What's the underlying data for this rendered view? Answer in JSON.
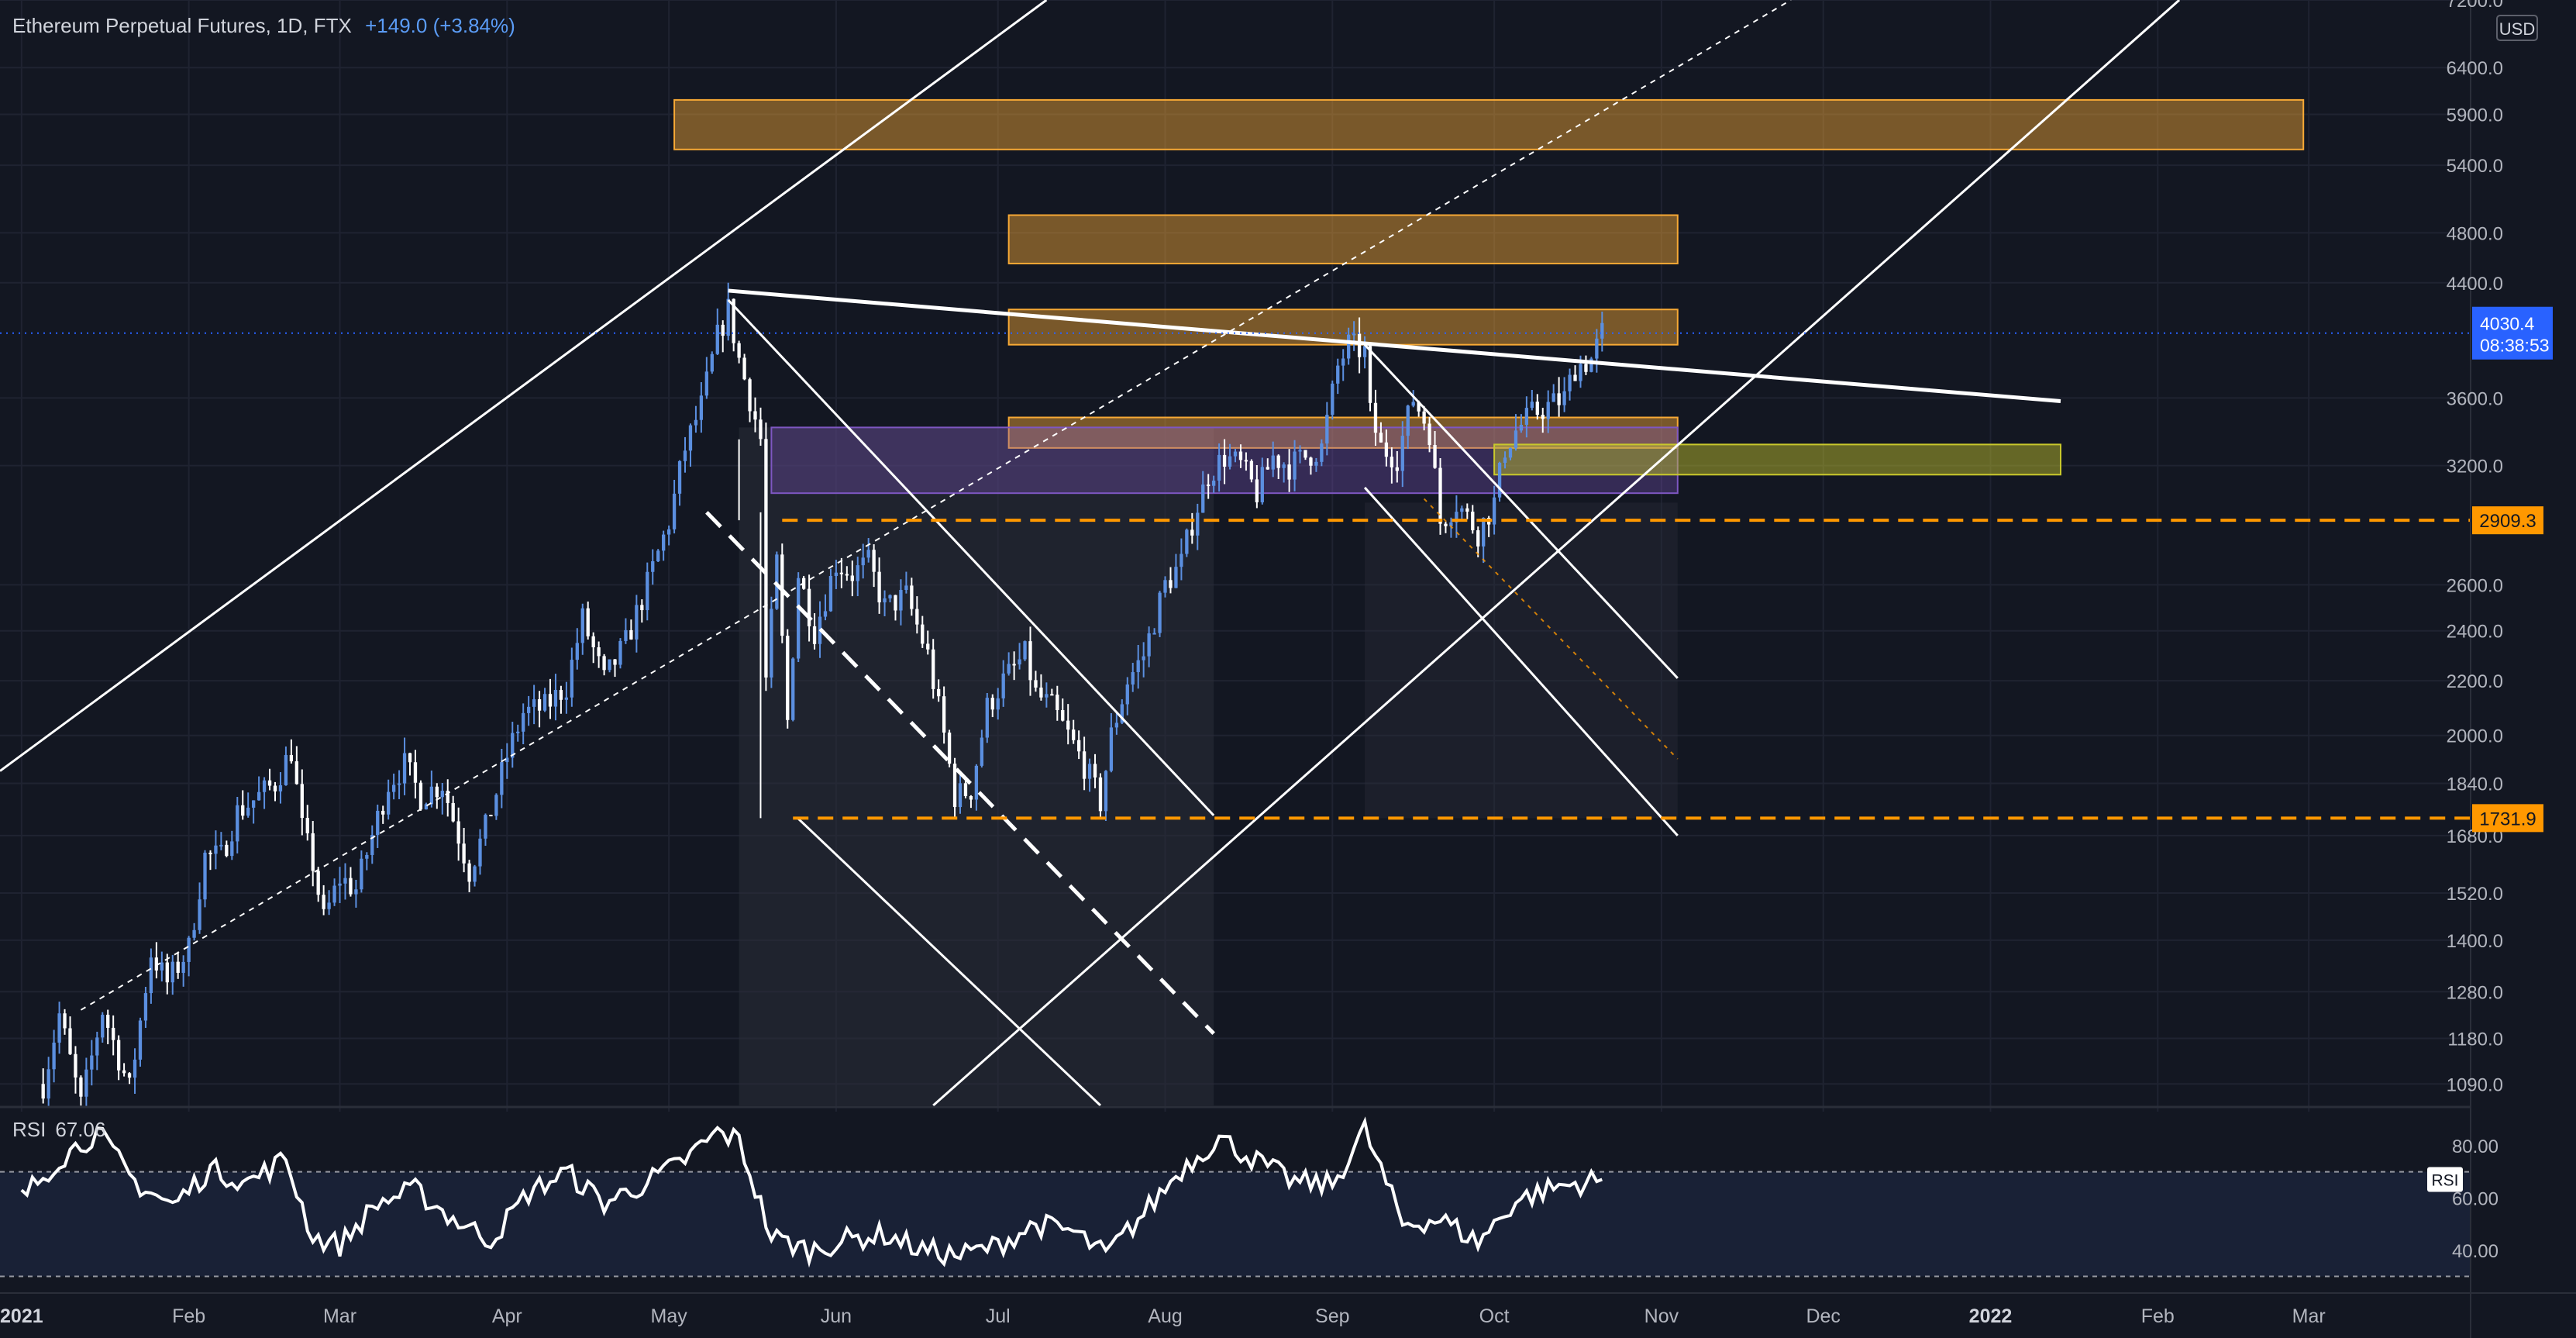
{
  "header": {
    "symbol_text": "Ethereum Perpetual Futures, 1D, FTX",
    "change_text": "+149.0 (+3.84%)"
  },
  "price_axis": {
    "currency": "USD",
    "last_price": "4030.4",
    "countdown": "08:38:53",
    "level_tags": [
      "2909.3",
      "1731.9"
    ]
  },
  "rsi_panel": {
    "label": "RSI",
    "value": "67.06",
    "axis_tag": "RSI"
  },
  "colors": {
    "background": "#131722",
    "up_candle": "#5b8fe0",
    "down_candle": "#ffffff",
    "zone_orange": "#f7a935",
    "zone_purple": "#7e57c2",
    "zone_yellow": "#c9c92c",
    "level_orange": "#ff9800",
    "last_price_tag": "#2962ff"
  },
  "chart_data": [
    {
      "type": "candlestick",
      "title": "Ethereum Perpetual Futures, 1D, FTX",
      "y_scale": "log",
      "ylim": [
        1050,
        7200
      ],
      "x_range": [
        "2020-12-28",
        "2022-03-31"
      ],
      "y_ticks": [
        7200,
        6400,
        5900,
        5400,
        4800,
        4400,
        4030.4,
        3600,
        3200,
        2909.3,
        2600,
        2400,
        2200,
        2000,
        1840,
        1731.9,
        1680,
        1520,
        1400,
        1280,
        1180,
        1090
      ],
      "x_tick_labels": [
        {
          "date": "2021-01-01",
          "label": "2021"
        },
        {
          "date": "2021-02-01",
          "label": "Feb"
        },
        {
          "date": "2021-03-01",
          "label": "Mar"
        },
        {
          "date": "2021-04-01",
          "label": "Apr"
        },
        {
          "date": "2021-05-01",
          "label": "May"
        },
        {
          "date": "2021-06-01",
          "label": "Jun"
        },
        {
          "date": "2021-07-01",
          "label": "Jul"
        },
        {
          "date": "2021-08-01",
          "label": "Aug"
        },
        {
          "date": "2021-09-01",
          "label": "Sep"
        },
        {
          "date": "2021-10-01",
          "label": "Oct"
        },
        {
          "date": "2021-11-01",
          "label": "Nov"
        },
        {
          "date": "2021-12-01",
          "label": "Dec"
        },
        {
          "date": "2022-01-01",
          "label": "2022"
        },
        {
          "date": "2022-02-01",
          "label": "Feb"
        },
        {
          "date": "2022-03-01",
          "label": "Mar"
        }
      ],
      "grid": true,
      "price_path": [
        [
          "2021-01-05",
          1090
        ],
        [
          "2021-01-08",
          1230
        ],
        [
          "2021-01-12",
          1050
        ],
        [
          "2021-01-16",
          1240
        ],
        [
          "2021-01-21",
          1080
        ],
        [
          "2021-01-25",
          1370
        ],
        [
          "2021-01-28",
          1300
        ],
        [
          "2021-02-01",
          1380
        ],
        [
          "2021-02-04",
          1620
        ],
        [
          "2021-02-07",
          1620
        ],
        [
          "2021-02-10",
          1750
        ],
        [
          "2021-02-14",
          1800
        ],
        [
          "2021-02-17",
          1840
        ],
        [
          "2021-02-20",
          1950
        ],
        [
          "2021-02-22",
          1700
        ],
        [
          "2021-02-24",
          1600
        ],
        [
          "2021-02-26",
          1450
        ],
        [
          "2021-03-01",
          1560
        ],
        [
          "2021-03-04",
          1530
        ],
        [
          "2021-03-07",
          1680
        ],
        [
          "2021-03-10",
          1840
        ],
        [
          "2021-03-13",
          1900
        ],
        [
          "2021-03-16",
          1800
        ],
        [
          "2021-03-20",
          1840
        ],
        [
          "2021-03-25",
          1580
        ],
        [
          "2021-03-28",
          1700
        ],
        [
          "2021-04-01",
          1930
        ],
        [
          "2021-04-04",
          2080
        ],
        [
          "2021-04-08",
          2100
        ],
        [
          "2021-04-12",
          2180
        ],
        [
          "2021-04-15",
          2450
        ],
        [
          "2021-04-19",
          2200
        ],
        [
          "2021-04-23",
          2350
        ],
        [
          "2021-04-27",
          2600
        ],
        [
          "2021-05-01",
          2900
        ],
        [
          "2021-05-04",
          3300
        ],
        [
          "2021-05-07",
          3550
        ],
        [
          "2021-05-10",
          4000
        ],
        [
          "2021-05-12",
          4200
        ],
        [
          "2021-05-14",
          3850
        ],
        [
          "2021-05-16",
          3600
        ],
        [
          "2021-05-18",
          3350
        ],
        [
          "2021-05-19",
          2200
        ],
        [
          "2021-05-21",
          2700
        ],
        [
          "2021-05-23",
          2050
        ],
        [
          "2021-05-25",
          2650
        ],
        [
          "2021-05-28",
          2400
        ],
        [
          "2021-06-01",
          2700
        ],
        [
          "2021-06-04",
          2650
        ],
        [
          "2021-06-07",
          2700
        ],
        [
          "2021-06-10",
          2500
        ],
        [
          "2021-06-14",
          2550
        ],
        [
          "2021-06-18",
          2300
        ],
        [
          "2021-06-21",
          2000
        ],
        [
          "2021-06-23",
          1800
        ],
        [
          "2021-06-26",
          1820
        ],
        [
          "2021-06-29",
          2100
        ],
        [
          "2021-07-02",
          2200
        ],
        [
          "2021-07-06",
          2300
        ],
        [
          "2021-07-08",
          2150
        ],
        [
          "2021-07-11",
          2100
        ],
        [
          "2021-07-14",
          2000
        ],
        [
          "2021-07-17",
          1900
        ],
        [
          "2021-07-20",
          1780
        ],
        [
          "2021-07-22",
          2000
        ],
        [
          "2021-07-25",
          2200
        ],
        [
          "2021-07-28",
          2300
        ],
        [
          "2021-08-01",
          2600
        ],
        [
          "2021-08-04",
          2700
        ],
        [
          "2021-08-06",
          2900
        ],
        [
          "2021-08-09",
          3150
        ],
        [
          "2021-08-12",
          3250
        ],
        [
          "2021-08-15",
          3200
        ],
        [
          "2021-08-18",
          3050
        ],
        [
          "2021-08-21",
          3250
        ],
        [
          "2021-08-24",
          3200
        ],
        [
          "2021-08-27",
          3250
        ],
        [
          "2021-08-30",
          3300
        ],
        [
          "2021-09-02",
          3800
        ],
        [
          "2021-09-04",
          3950
        ],
        [
          "2021-09-07",
          3900
        ],
        [
          "2021-09-08",
          3500
        ],
        [
          "2021-09-10",
          3300
        ],
        [
          "2021-09-13",
          3250
        ],
        [
          "2021-09-16",
          3600
        ],
        [
          "2021-09-19",
          3400
        ],
        [
          "2021-09-21",
          2900
        ],
        [
          "2021-09-24",
          3000
        ],
        [
          "2021-09-28",
          2850
        ],
        [
          "2021-10-01",
          3000
        ],
        [
          "2021-10-03",
          3300
        ],
        [
          "2021-10-05",
          3400
        ],
        [
          "2021-10-08",
          3500
        ],
        [
          "2021-10-11",
          3550
        ],
        [
          "2021-10-14",
          3600
        ],
        [
          "2021-10-16",
          3800
        ],
        [
          "2021-10-19",
          3850
        ],
        [
          "2021-10-21",
          4030
        ]
      ],
      "drawings": {
        "horizontal_levels": [
          2909.3,
          1731.9
        ],
        "zones": [
          {
            "color": "orange",
            "from": "2021-05-02",
            "to": "2022-02-28",
            "low": 5550,
            "high": 6050
          },
          {
            "color": "orange",
            "from": "2021-07-03",
            "to": "2021-11-04",
            "low": 4550,
            "high": 4950
          },
          {
            "color": "orange",
            "from": "2021-07-03",
            "to": "2021-11-04",
            "low": 3950,
            "high": 4200
          },
          {
            "color": "orange",
            "from": "2021-07-03",
            "to": "2021-11-04",
            "low": 3300,
            "high": 3480
          },
          {
            "color": "purple",
            "from": "2021-05-20",
            "to": "2021-11-04",
            "low": 3050,
            "high": 3420
          },
          {
            "color": "yellow",
            "from": "2021-10-01",
            "to": "2022-01-14",
            "low": 3150,
            "high": 3320
          }
        ]
      }
    },
    {
      "type": "line",
      "title": "RSI",
      "ylim": [
        26,
        93
      ],
      "y_ticks": [
        80,
        60,
        40
      ],
      "reference_lines": [
        70,
        30
      ],
      "last_value": 67.06,
      "series": [
        {
          "x": [
            "2021-01-01",
            "2021-01-08",
            "2021-01-15",
            "2021-01-22",
            "2021-01-29",
            "2021-02-05",
            "2021-02-12",
            "2021-02-19",
            "2021-02-24",
            "2021-03-01",
            "2021-03-08",
            "2021-03-15",
            "2021-03-22",
            "2021-03-29",
            "2021-04-05",
            "2021-04-12",
            "2021-04-19",
            "2021-04-26",
            "2021-05-03",
            "2021-05-10",
            "2021-05-14",
            "2021-05-20",
            "2021-05-27",
            "2021-06-03",
            "2021-06-10",
            "2021-06-17",
            "2021-06-24",
            "2021-07-01",
            "2021-07-08",
            "2021-07-15",
            "2021-07-21",
            "2021-07-28",
            "2021-08-04",
            "2021-08-11",
            "2021-08-18",
            "2021-08-25",
            "2021-09-01",
            "2021-09-07",
            "2021-09-14",
            "2021-09-21",
            "2021-09-28",
            "2021-10-05",
            "2021-10-12",
            "2021-10-21"
          ],
          "y": [
            60,
            75,
            85,
            66,
            57,
            71,
            66,
            75,
            45,
            42,
            58,
            63,
            52,
            44,
            62,
            70,
            58,
            65,
            73,
            85,
            82,
            45,
            40,
            44,
            46,
            40,
            38,
            42,
            50,
            47,
            38,
            54,
            71,
            83,
            74,
            66,
            65,
            86,
            50,
            52,
            43,
            59,
            64,
            67.06
          ]
        }
      ]
    }
  ]
}
